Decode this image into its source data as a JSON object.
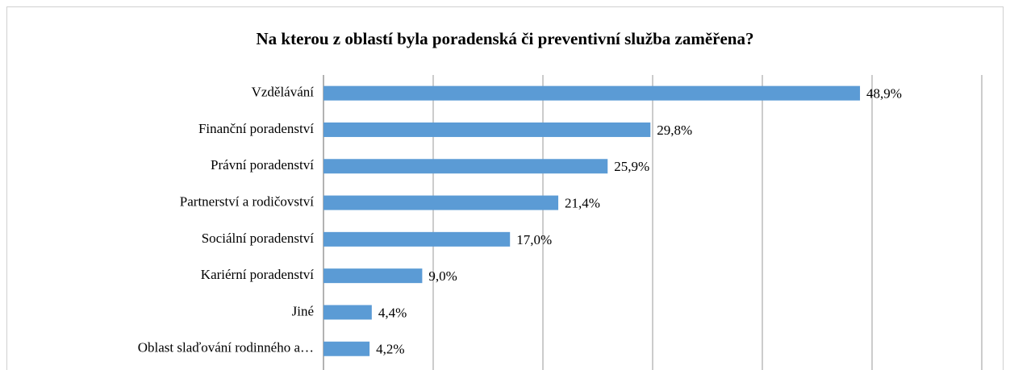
{
  "chart_data": {
    "type": "bar",
    "orientation": "horizontal",
    "title": "Na kterou z oblastí byla poradenská či preventivní služba zaměřena?",
    "categories": [
      "Vzdělávání",
      "Finanční poradenství",
      "Právní poradenství",
      "Partnerství a rodičovství",
      "Sociální poradenství",
      "Kariérní poradenství",
      "Jiné",
      "Oblast slaďování rodinného a…"
    ],
    "values": [
      48.9,
      29.8,
      25.9,
      21.4,
      17.0,
      9.0,
      4.4,
      4.2
    ],
    "value_labels": [
      "48,9%",
      "29,8%",
      "25,9%",
      "21,4%",
      "17,0%",
      "9,0%",
      "4,4%",
      "4,2%"
    ],
    "color": "#5b9bd5",
    "xlim": [
      0,
      60
    ],
    "xticks": [
      0,
      10,
      20,
      30,
      40,
      50,
      60
    ],
    "grid": true
  }
}
